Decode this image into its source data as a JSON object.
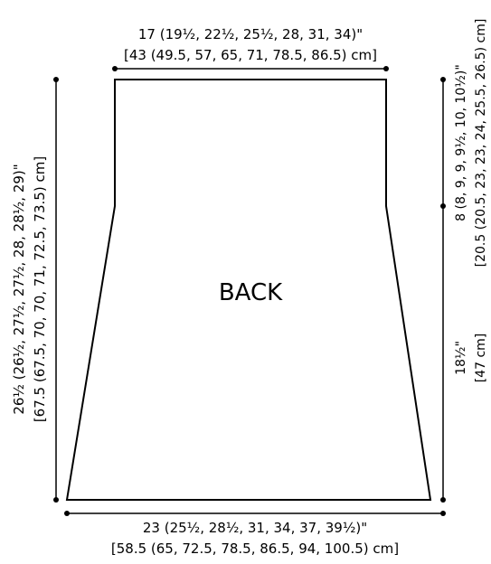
{
  "piece_label": "BACK",
  "top_width": {
    "line1": "17 (19½, 22½, 25½, 28, 31, 34)\"",
    "line2": "[43 (49.5, 57, 65, 71, 78.5, 86.5) cm]"
  },
  "bottom_width": {
    "line1": "23 (25½, 28½, 31, 34, 37, 39½)\"",
    "line2": "[58.5 (65, 72.5, 78.5, 86.5, 94, 100.5) cm]"
  },
  "total_length": {
    "line1": "26½ (26½, 27½, 27½, 28, 28½, 29)\"",
    "line2": "[67.5 (67.5, 70, 70, 71, 72.5, 73.5) cm]"
  },
  "armhole_depth": {
    "line1": "8 (8, 9, 9, 9½, 10, 10½)\"",
    "line2": "[20.5 (20.5, 23, 23, 24, 25.5, 26.5) cm]"
  },
  "side_length": {
    "line1": "18½\"",
    "line2": "[47 cm]"
  }
}
